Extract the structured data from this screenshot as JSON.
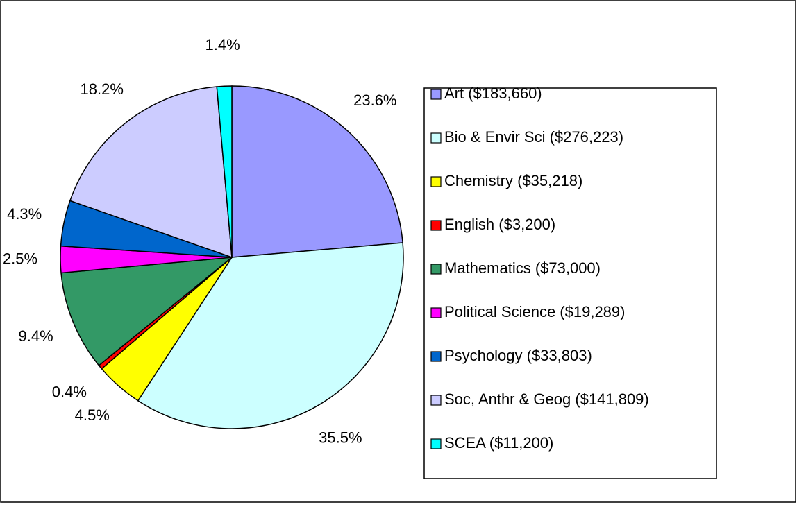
{
  "chart_data": {
    "type": "pie",
    "categories": [
      "Art ($183,660)",
      "Bio & Envir Sci ($276,223)",
      "Chemistry ($35,218)",
      "English ($3,200)",
      "Mathematics ($73,000)",
      "Political Science ($19,289)",
      "Psychology ($33,803)",
      "Soc, Anthr & Geog ($141,809)",
      "SCEA ($11,200)"
    ],
    "values": [
      23.6,
      35.5,
      4.5,
      0.4,
      9.4,
      2.5,
      4.3,
      18.2,
      1.4
    ],
    "value_labels": [
      "23.6%",
      "35.5%",
      "4.5%",
      "0.4%",
      "9.4%",
      "2.5%",
      "4.3%",
      "18.2%",
      "1.4%"
    ],
    "colors": [
      "#9999ff",
      "#ccffff",
      "#ffff00",
      "#ff0000",
      "#339966",
      "#ff00ff",
      "#0066cc",
      "#ccccff",
      "#00ffff"
    ],
    "legend": "right"
  }
}
